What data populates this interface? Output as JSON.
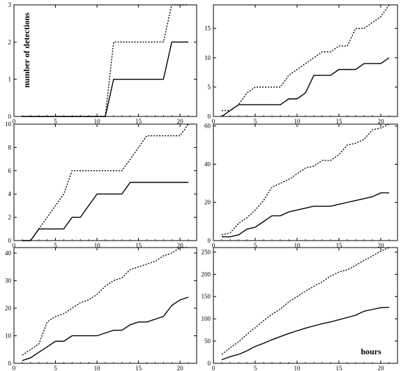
{
  "figure": {
    "ylabel_text": "number of detections",
    "xlabel_text": "hours"
  },
  "chart_data": [
    {
      "type": "line",
      "xlim": [
        0,
        22
      ],
      "ylim": [
        0,
        3
      ],
      "xticks": [
        0,
        5,
        10,
        15,
        20
      ],
      "yticks": [
        0,
        1,
        2,
        3
      ],
      "x": [
        1,
        2,
        3,
        4,
        5,
        6,
        7,
        8,
        9,
        10,
        11,
        12,
        13,
        14,
        15,
        16,
        17,
        18,
        19,
        20,
        21
      ],
      "series": [
        {
          "style": "solid",
          "values": [
            0,
            0,
            0,
            0,
            0,
            0,
            0,
            0,
            0,
            0,
            0,
            1,
            1,
            1,
            1,
            1,
            1,
            1,
            2,
            2,
            2
          ]
        },
        {
          "style": "dotted",
          "values": [
            0,
            0,
            0,
            0,
            0,
            0,
            0,
            0,
            0,
            0,
            0,
            2,
            2,
            2,
            2,
            2,
            2,
            2,
            3,
            3,
            3
          ]
        }
      ]
    },
    {
      "type": "line",
      "xlim": [
        0,
        22
      ],
      "ylim": [
        0,
        19
      ],
      "xticks": [
        0,
        5,
        10,
        15,
        20
      ],
      "yticks": [
        0,
        5,
        10,
        15
      ],
      "x": [
        1,
        2,
        3,
        4,
        5,
        6,
        7,
        8,
        9,
        10,
        11,
        12,
        13,
        14,
        15,
        16,
        17,
        18,
        19,
        20,
        21
      ],
      "series": [
        {
          "style": "solid",
          "values": [
            0,
            1,
            2,
            2,
            2,
            2,
            2,
            2,
            3,
            3,
            4,
            7,
            7,
            7,
            8,
            8,
            8,
            9,
            9,
            9,
            10
          ]
        },
        {
          "style": "dotted",
          "values": [
            1,
            1,
            2,
            4,
            5,
            5,
            5,
            5,
            7,
            8,
            9,
            10,
            11,
            11,
            12,
            12,
            15,
            15,
            16,
            17,
            19
          ]
        }
      ]
    },
    {
      "type": "line",
      "xlim": [
        0,
        22
      ],
      "ylim": [
        0,
        10
      ],
      "xticks": [
        0,
        5,
        10,
        15,
        20
      ],
      "yticks": [
        0,
        2,
        4,
        6,
        8,
        10
      ],
      "x": [
        1,
        2,
        3,
        4,
        5,
        6,
        7,
        8,
        9,
        10,
        11,
        12,
        13,
        14,
        15,
        16,
        17,
        18,
        19,
        20,
        21
      ],
      "series": [
        {
          "style": "solid",
          "values": [
            0,
            0,
            1,
            1,
            1,
            1,
            2,
            2,
            3,
            4,
            4,
            4,
            4,
            5,
            5,
            5,
            5,
            5,
            5,
            5,
            5
          ]
        },
        {
          "style": "dotted",
          "values": [
            0,
            0,
            1,
            2,
            3,
            4,
            6,
            6,
            6,
            6,
            6,
            6,
            6,
            7,
            8,
            9,
            9,
            9,
            9,
            9,
            10
          ]
        }
      ]
    },
    {
      "type": "line",
      "xlim": [
        0,
        22
      ],
      "ylim": [
        0,
        61
      ],
      "xticks": [
        0,
        5,
        10,
        15,
        20
      ],
      "yticks": [
        0,
        20,
        40,
        60
      ],
      "x": [
        1,
        2,
        3,
        4,
        5,
        6,
        7,
        8,
        9,
        10,
        11,
        12,
        13,
        14,
        15,
        16,
        17,
        18,
        19,
        20,
        21
      ],
      "series": [
        {
          "style": "solid",
          "values": [
            2,
            2,
            3,
            6,
            7,
            10,
            13,
            13,
            15,
            16,
            17,
            18,
            18,
            18,
            19,
            20,
            21,
            22,
            23,
            25,
            25
          ]
        },
        {
          "style": "dotted",
          "values": [
            3,
            4,
            9,
            12,
            16,
            21,
            28,
            30,
            32,
            35,
            38,
            39,
            42,
            42,
            45,
            50,
            51,
            53,
            58,
            59,
            61
          ]
        }
      ]
    },
    {
      "type": "line",
      "xlim": [
        0,
        22
      ],
      "ylim": [
        0,
        42
      ],
      "xticks": [
        0,
        5,
        10,
        15,
        20
      ],
      "yticks": [
        0,
        10,
        20,
        30,
        40
      ],
      "x": [
        1,
        2,
        3,
        4,
        5,
        6,
        7,
        8,
        9,
        10,
        11,
        12,
        13,
        14,
        15,
        16,
        17,
        18,
        19,
        20,
        21
      ],
      "series": [
        {
          "style": "solid",
          "values": [
            1,
            2,
            4,
            6,
            8,
            8,
            10,
            10,
            10,
            10,
            11,
            12,
            12,
            14,
            15,
            15,
            16,
            17,
            21,
            23,
            24
          ]
        },
        {
          "style": "dotted",
          "values": [
            3,
            5,
            7,
            15,
            17,
            18,
            20,
            22,
            23,
            25,
            28,
            30,
            31,
            34,
            35,
            36,
            37,
            39,
            40,
            42,
            42
          ]
        }
      ]
    },
    {
      "type": "line",
      "xlim": [
        0,
        22
      ],
      "ylim": [
        0,
        260
      ],
      "xticks": [
        0,
        5,
        10,
        15,
        20
      ],
      "yticks": [
        0,
        50,
        100,
        150,
        200,
        250
      ],
      "x": [
        1,
        2,
        3,
        4,
        5,
        6,
        7,
        8,
        9,
        10,
        11,
        12,
        13,
        14,
        15,
        16,
        17,
        18,
        19,
        20,
        21
      ],
      "series": [
        {
          "style": "solid",
          "values": [
            8,
            15,
            20,
            28,
            38,
            45,
            53,
            60,
            67,
            73,
            79,
            84,
            89,
            93,
            98,
            103,
            108,
            117,
            121,
            125,
            126
          ]
        },
        {
          "style": "dotted",
          "values": [
            20,
            35,
            48,
            65,
            80,
            96,
            110,
            122,
            138,
            150,
            162,
            173,
            183,
            196,
            205,
            210,
            220,
            231,
            241,
            252,
            260
          ]
        }
      ]
    }
  ]
}
